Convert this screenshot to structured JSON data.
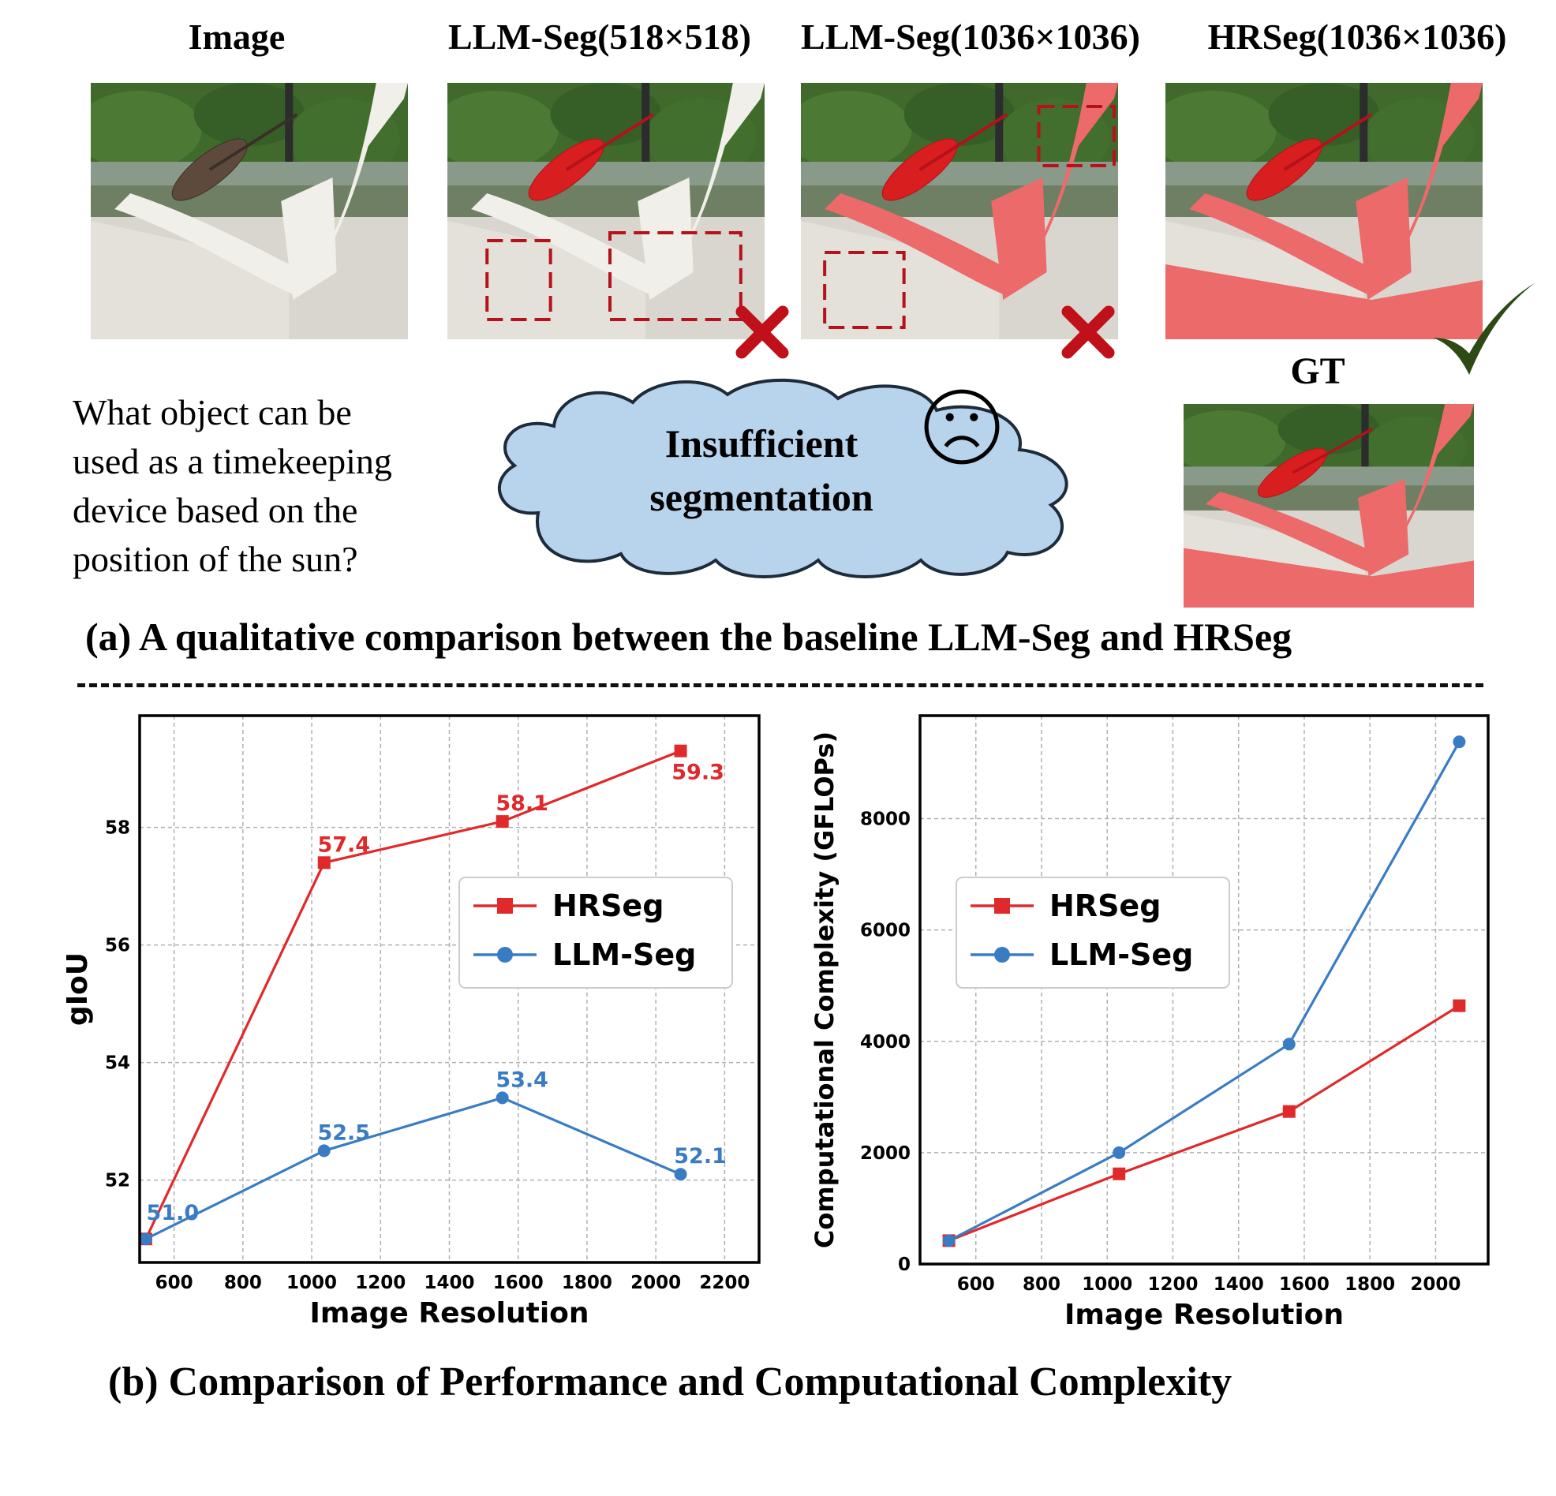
{
  "panel_a": {
    "columns": [
      {
        "title": "Image"
      },
      {
        "title": "LLM-Seg(518×518)"
      },
      {
        "title": "LLM-Seg(1036×1036)"
      },
      {
        "title": "HRSeg(1036×1036)"
      }
    ],
    "gt_label": "GT",
    "question_lines": [
      "What object can be",
      "used as a timekeeping",
      "device based on the",
      "position of the sun?"
    ],
    "cloud_lines": [
      "Insufficient",
      "segmentation"
    ],
    "cross_icon": "cross-icon",
    "check_icon": "check-icon",
    "sad_face_icon": "sad-face-icon",
    "caption": "(a) A qualitative comparison between the baseline LLM-Seg and HRSeg",
    "colors": {
      "mask": "#e8474a",
      "box": "#b5121b",
      "cloud": "#b8d3ec",
      "check": "#2d4a14"
    }
  },
  "panel_b": {
    "caption": "(b) Comparison of Performance and Computational Complexity",
    "colors": {
      "hrseg": "#e0292a",
      "llmseg": "#3a7cc4"
    }
  },
  "chart_data": [
    {
      "type": "line",
      "xlabel": "Image Resolution",
      "ylabel": "gIoU",
      "xlim": [
        500,
        2300
      ],
      "ylim": [
        50.6,
        59.9
      ],
      "xticks": [
        600,
        800,
        1000,
        1200,
        1400,
        1600,
        1800,
        2000,
        2200
      ],
      "yticks": [
        52,
        54,
        56,
        58
      ],
      "grid": true,
      "legend": "center-right",
      "series": [
        {
          "name": "HRSeg",
          "marker": "square",
          "x": [
            518,
            1036,
            1554,
            2072
          ],
          "y": [
            51.0,
            57.4,
            58.1,
            59.3
          ],
          "labels": [
            "",
            "57.4",
            "58.1",
            "59.3"
          ]
        },
        {
          "name": "LLM-Seg",
          "marker": "circle",
          "x": [
            518,
            1036,
            1554,
            2072
          ],
          "y": [
            51.0,
            52.5,
            53.4,
            52.1
          ],
          "labels": [
            "51.0",
            "52.5",
            "53.4",
            "52.1"
          ]
        }
      ]
    },
    {
      "type": "line",
      "xlabel": "Image Resolution",
      "ylabel": "Computational Complexity (GFLOPs)",
      "xlim": [
        430,
        2160
      ],
      "ylim": [
        0,
        9850
      ],
      "xticks": [
        600,
        800,
        1000,
        1200,
        1400,
        1600,
        1800,
        2000
      ],
      "yticks": [
        0,
        2000,
        4000,
        6000,
        8000
      ],
      "grid": true,
      "legend": "upper-left",
      "series": [
        {
          "name": "HRSeg",
          "marker": "square",
          "x": [
            518,
            1036,
            1554,
            2072
          ],
          "y": [
            420,
            1620,
            2740,
            4640
          ]
        },
        {
          "name": "LLM-Seg",
          "marker": "circle",
          "x": [
            518,
            1036,
            1554,
            2072
          ],
          "y": [
            420,
            2000,
            3950,
            9380
          ]
        }
      ]
    }
  ]
}
